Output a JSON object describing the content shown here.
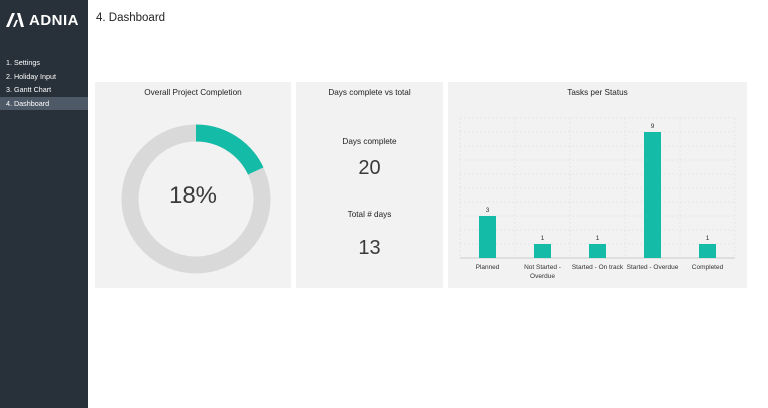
{
  "app": {
    "logo_text": "ADNIA"
  },
  "sidebar": {
    "items": [
      {
        "label": "1. Settings",
        "active": false
      },
      {
        "label": "2. Holiday Input",
        "active": false
      },
      {
        "label": "3. Gantt Chart",
        "active": false
      },
      {
        "label": "4. Dashboard",
        "active": true
      }
    ]
  },
  "header": {
    "title": "4. Dashboard"
  },
  "completion": {
    "title": "Overall Project Completion",
    "percent_label": "18%",
    "percent_value": 0.18,
    "colors": {
      "filled": "#14bba6",
      "remaining": "#d9d9d9"
    }
  },
  "days": {
    "title": "Days complete vs total",
    "complete_label": "Days complete",
    "complete_value": "20",
    "total_label": "Total # days",
    "total_value": "13"
  },
  "tasks": {
    "title": "Tasks per Status",
    "bar_color": "#14bba6"
  },
  "chart_data": {
    "type": "bar",
    "title": "Tasks per Status",
    "categories": [
      "Planned",
      "Not Started - Overdue",
      "Started - On track",
      "Started - Overdue",
      "Completed"
    ],
    "category_lines": [
      [
        "Planned"
      ],
      [
        "Not Started -",
        "Overdue"
      ],
      [
        "Started - On track"
      ],
      [
        "Started - Overdue"
      ],
      [
        "Completed"
      ]
    ],
    "values": [
      3,
      1,
      1,
      9,
      1
    ],
    "ylim": [
      0,
      10
    ],
    "grid": true,
    "legend": "none"
  }
}
